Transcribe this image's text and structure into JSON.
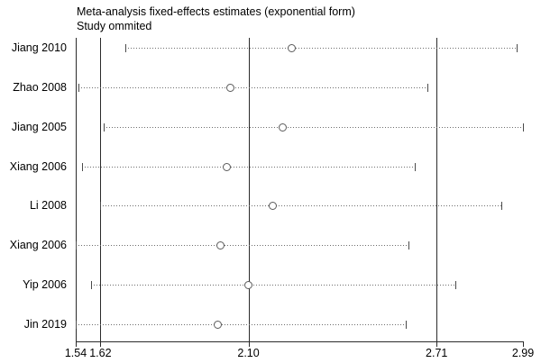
{
  "chart_data": {
    "type": "scatter",
    "variant": "leave-one-out-forest-plot",
    "title": "Meta-analysis fixed-effects estimates (exponential form)",
    "subtitle": "Study ommited",
    "xlim": [
      1.54,
      2.99
    ],
    "x_ticks": [
      1.54,
      1.62,
      2.1,
      2.71,
      2.99
    ],
    "x_tick_labels": [
      "1.54",
      "1.62",
      "2.10",
      "2.71",
      "2.99"
    ],
    "reference_lines": [
      1.54,
      1.62,
      2.1,
      2.71
    ],
    "grid": "vertical-reference-lines-only",
    "legend": "none",
    "studies": [
      {
        "label": "Jiang 2010",
        "estimate": 2.24,
        "lower": 1.7,
        "upper": 2.97
      },
      {
        "label": "Zhao 2008",
        "estimate": 2.04,
        "lower": 1.55,
        "upper": 2.68
      },
      {
        "label": "Jiang 2005",
        "estimate": 2.21,
        "lower": 1.63,
        "upper": 2.99
      },
      {
        "label": "Xiang 2006",
        "estimate": 2.03,
        "lower": 1.56,
        "upper": 2.64
      },
      {
        "label": "Li 2008",
        "estimate": 2.18,
        "lower": 1.62,
        "upper": 2.92
      },
      {
        "label": "Xiang 2006",
        "estimate": 2.01,
        "lower": 1.54,
        "upper": 2.62
      },
      {
        "label": "Yip 2006",
        "estimate": 2.1,
        "lower": 1.59,
        "upper": 2.77
      },
      {
        "label": "Jin 2019",
        "estimate": 2.0,
        "lower": 1.54,
        "upper": 2.61
      }
    ],
    "colors": {
      "axis": "#2b2b2b",
      "ci_dots": "#6e6e6e",
      "marker_border": "#5a5a5a",
      "marker_fill": "#ffffff",
      "text": "#000000"
    }
  }
}
